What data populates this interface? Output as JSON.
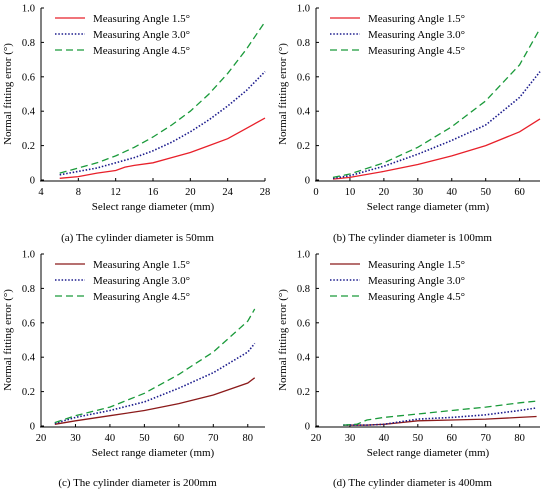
{
  "chart_data": [
    {
      "type": "line",
      "caption": "(a) The cylinder diameter is 50mm",
      "xlabel": "Select range diameter (mm)",
      "ylabel": "Normal fitting error (°)",
      "xlim": [
        4,
        28
      ],
      "ylim": [
        0,
        1.0
      ],
      "xticks": [
        4,
        8,
        12,
        16,
        20,
        24,
        28
      ],
      "yticks": [
        0,
        0.2,
        0.4,
        0.6,
        0.8,
        1.0
      ],
      "ytick_labels": [
        "0",
        "0.2",
        "0.4",
        "0.6",
        "0.8",
        "1.0"
      ],
      "legend_position": "top-left",
      "series": [
        {
          "name": "Measuring Angle 1.5°",
          "color": "#e8202a",
          "style": "solid",
          "x": [
            6,
            8,
            10,
            12,
            13,
            14,
            16,
            18,
            20,
            22,
            24,
            26,
            28
          ],
          "y": [
            0.01,
            0.02,
            0.04,
            0.055,
            0.075,
            0.085,
            0.1,
            0.13,
            0.16,
            0.2,
            0.24,
            0.3,
            0.36
          ]
        },
        {
          "name": "Measuring Angle 3.0°",
          "color": "#1a1a8c",
          "style": "dotted",
          "x": [
            6,
            8,
            10,
            12,
            14,
            16,
            18,
            20,
            22,
            24,
            26,
            28
          ],
          "y": [
            0.03,
            0.05,
            0.07,
            0.1,
            0.13,
            0.17,
            0.22,
            0.28,
            0.35,
            0.43,
            0.52,
            0.63
          ]
        },
        {
          "name": "Measuring Angle 4.5°",
          "color": "#1a9a3a",
          "style": "dashed",
          "x": [
            6,
            8,
            10,
            12,
            14,
            16,
            18,
            20,
            22,
            24,
            26,
            28
          ],
          "y": [
            0.04,
            0.07,
            0.1,
            0.14,
            0.19,
            0.25,
            0.32,
            0.4,
            0.5,
            0.62,
            0.76,
            0.92
          ]
        }
      ]
    },
    {
      "type": "line",
      "caption": "(b) The cylinder diameter is 100mm",
      "xlabel": "Select range diameter (mm)",
      "ylabel": "Normal fitting error (°)",
      "xlim": [
        0,
        66
      ],
      "ylim": [
        0,
        1.0
      ],
      "xticks": [
        0,
        10,
        20,
        30,
        40,
        50,
        60
      ],
      "yticks": [
        0,
        0.2,
        0.4,
        0.6,
        0.8,
        1.0
      ],
      "ytick_labels": [
        "0",
        "0.2",
        "0.4",
        "0.6",
        "0.8",
        "1.0"
      ],
      "legend_position": "top-left",
      "series": [
        {
          "name": "Measuring Angle 1.5°",
          "color": "#e8202a",
          "style": "solid",
          "x": [
            5,
            10,
            20,
            30,
            40,
            50,
            60,
            66
          ],
          "y": [
            0.005,
            0.015,
            0.05,
            0.09,
            0.14,
            0.2,
            0.28,
            0.355
          ]
        },
        {
          "name": "Measuring Angle 3.0°",
          "color": "#1a1a8c",
          "style": "dotted",
          "x": [
            5,
            10,
            20,
            30,
            40,
            50,
            60,
            66
          ],
          "y": [
            0.01,
            0.025,
            0.08,
            0.15,
            0.23,
            0.32,
            0.48,
            0.63
          ]
        },
        {
          "name": "Measuring Angle 4.5°",
          "color": "#1a9a3a",
          "style": "dashed",
          "x": [
            5,
            10,
            20,
            30,
            40,
            50,
            60,
            66
          ],
          "y": [
            0.015,
            0.035,
            0.1,
            0.19,
            0.31,
            0.46,
            0.67,
            0.88
          ]
        }
      ]
    },
    {
      "type": "line",
      "caption": "(c) The cylinder diameter is 200mm",
      "xlabel": "Select range diameter (mm)",
      "ylabel": "Normal fitting error (°)",
      "xlim": [
        20,
        85
      ],
      "ylim": [
        0,
        1.0
      ],
      "xticks": [
        20,
        30,
        40,
        50,
        60,
        70,
        80
      ],
      "yticks": [
        0,
        0.2,
        0.4,
        0.6,
        0.8,
        1.0
      ],
      "ytick_labels": [
        "0",
        "0.2",
        "0.4",
        "0.6",
        "0.8",
        "1.0"
      ],
      "legend_position": "top-left",
      "series": [
        {
          "name": "Measuring Angle 1.5°",
          "color": "#8b1a1a",
          "style": "solid",
          "x": [
            24,
            30,
            40,
            50,
            60,
            70,
            80,
            82
          ],
          "y": [
            0.01,
            0.03,
            0.06,
            0.09,
            0.13,
            0.18,
            0.25,
            0.28
          ]
        },
        {
          "name": "Measuring Angle 3.0°",
          "color": "#1a1a8c",
          "style": "dotted",
          "x": [
            24,
            30,
            40,
            50,
            60,
            70,
            80,
            82
          ],
          "y": [
            0.015,
            0.05,
            0.09,
            0.14,
            0.22,
            0.31,
            0.43,
            0.48
          ]
        },
        {
          "name": "Measuring Angle 4.5°",
          "color": "#1a9a3a",
          "style": "dashed",
          "x": [
            24,
            30,
            40,
            50,
            60,
            70,
            80,
            82
          ],
          "y": [
            0.02,
            0.06,
            0.11,
            0.19,
            0.3,
            0.43,
            0.61,
            0.68
          ]
        }
      ]
    },
    {
      "type": "line",
      "caption": "(d) The cylinder diameter is 400mm",
      "xlabel": "Select range diameter (mm)",
      "ylabel": "Normal fitting error (°)",
      "xlim": [
        20,
        86
      ],
      "ylim": [
        0,
        1.0
      ],
      "xticks": [
        20,
        30,
        40,
        50,
        60,
        70,
        80
      ],
      "yticks": [
        0,
        0.2,
        0.4,
        0.6,
        0.8,
        1.0
      ],
      "ytick_labels": [
        "0",
        "0.2",
        "0.4",
        "0.6",
        "0.8",
        "1.0"
      ],
      "legend_position": "top-left",
      "series": [
        {
          "name": "Measuring Angle 1.5°",
          "color": "#8b1a1a",
          "style": "solid",
          "x": [
            28,
            35,
            40,
            45,
            50,
            60,
            70,
            80,
            85
          ],
          "y": [
            0.005,
            0.005,
            0.01,
            0.02,
            0.03,
            0.035,
            0.04,
            0.05,
            0.055
          ]
        },
        {
          "name": "Measuring Angle 3.0°",
          "color": "#1a1a8c",
          "style": "dotted",
          "x": [
            28,
            35,
            40,
            45,
            50,
            60,
            70,
            80,
            85
          ],
          "y": [
            0.005,
            0.005,
            0.01,
            0.025,
            0.04,
            0.05,
            0.065,
            0.09,
            0.105
          ]
        },
        {
          "name": "Measuring Angle 4.5°",
          "color": "#1a9a3a",
          "style": "dashed",
          "x": [
            28,
            32,
            35,
            40,
            45,
            50,
            60,
            70,
            80,
            85
          ],
          "y": [
            0.005,
            0.01,
            0.035,
            0.05,
            0.06,
            0.07,
            0.09,
            0.11,
            0.135,
            0.145
          ]
        }
      ]
    }
  ]
}
